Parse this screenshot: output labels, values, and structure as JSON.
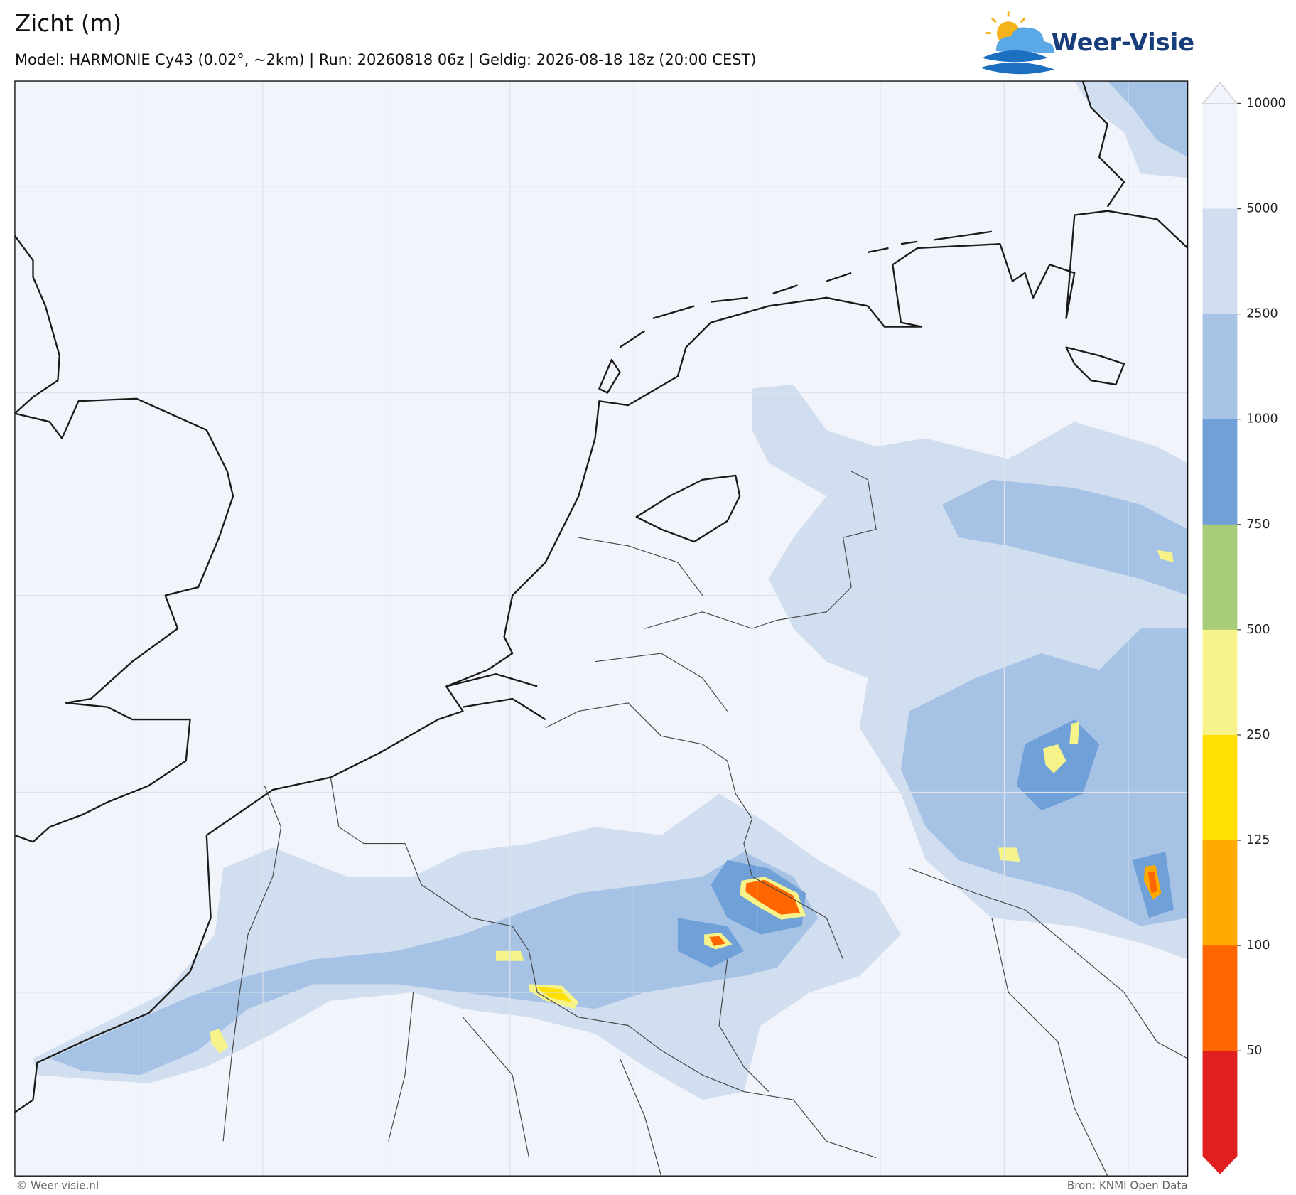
{
  "header": {
    "title": "Zicht (m)",
    "subtitle": "Model: HARMONIE Cy43 (0.02°, ~2km)  |  Run: 20260818 06z  |  Geldig: 2026-08-18 18z (20:00 CEST)"
  },
  "logo": {
    "text": "Weer-Visie"
  },
  "colorbar": {
    "ticks": [
      10000,
      5000,
      2500,
      1000,
      750,
      500,
      250,
      125,
      100,
      50
    ],
    "colors": [
      "#f1f4fa",
      "#d0def0",
      "#a6c3e6",
      "#6fa0d8",
      "#a8cc78",
      "#f5f38a",
      "#ffe000",
      "#ffaa00",
      "#ff6600",
      "#e02020"
    ]
  },
  "footer": {
    "left": "© Weer-visie.nl",
    "right": "Bron: KNMI Open Data"
  }
}
